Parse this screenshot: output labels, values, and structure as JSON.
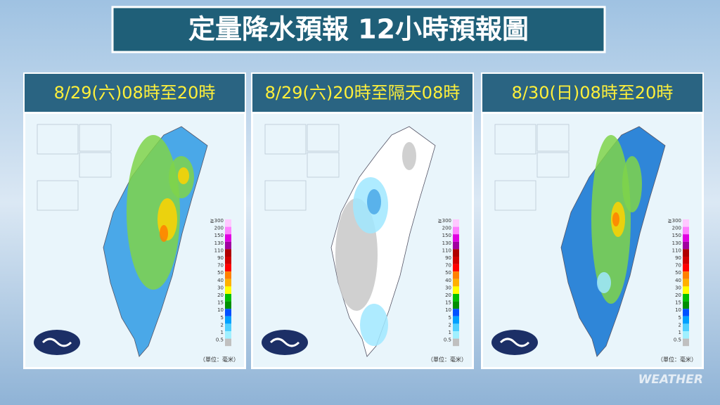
{
  "title": "定量降水預報 12小時預報圖",
  "panels": [
    {
      "heading": "8/29(六)08時至20時"
    },
    {
      "heading": "8/29(六)20時至隔天08時"
    },
    {
      "heading": "8/30(日)08時至20時"
    }
  ],
  "legend": {
    "labels": [
      "≧300",
      "200",
      "150",
      "130",
      "110",
      "90",
      "70",
      "50",
      "40",
      "30",
      "20",
      "15",
      "10",
      "5",
      "2",
      "1",
      "0.5"
    ],
    "unit": "（單位：毫米）"
  },
  "watermark": "WEATHER"
}
